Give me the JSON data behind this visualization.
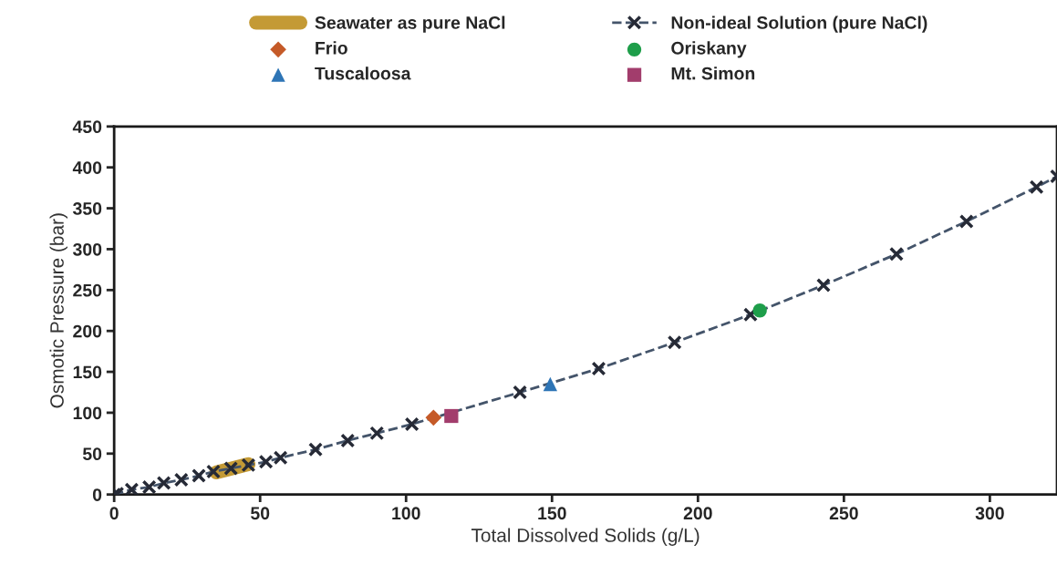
{
  "chart_data": {
    "type": "line",
    "xlabel": "Total Dissolved Solids (g/L)",
    "ylabel": "Osmotic Pressure (bar)",
    "xlim": [
      0,
      323
    ],
    "ylim": [
      0,
      450
    ],
    "xticks": [
      0,
      50,
      100,
      150,
      200,
      250,
      300
    ],
    "yticks": [
      0,
      50,
      100,
      150,
      200,
      250,
      300,
      350,
      400,
      450
    ],
    "grid": false,
    "legend": "top",
    "series": [
      {
        "name": "Seawater as pure NaCl",
        "color": "#c49a35",
        "marker": "none",
        "line_style": "solid",
        "x": [
          35,
          46
        ],
        "values": [
          27,
          37
        ]
      },
      {
        "name": "Non-ideal Solution (pure NaCl)",
        "color": "#44546a",
        "marker": "cross",
        "line_style": "dashed",
        "x": [
          0,
          1,
          6,
          12,
          17,
          23,
          29,
          34,
          40,
          46,
          52,
          57,
          69,
          80,
          90,
          102,
          139,
          166,
          192,
          218,
          243,
          268,
          292,
          316,
          323
        ],
        "values": [
          0,
          1,
          6,
          9,
          14,
          18,
          23,
          28,
          32,
          36,
          40,
          45,
          55,
          66,
          75,
          86,
          125,
          154,
          186,
          220,
          256,
          294,
          334,
          376,
          389
        ]
      },
      {
        "name": "Frio",
        "type": "scatter",
        "color": "#c55a28",
        "marker": "diamond",
        "x": [
          109.4
        ],
        "values": [
          94
        ]
      },
      {
        "name": "Oriskany",
        "type": "scatter",
        "color": "#1e9e4a",
        "marker": "circle",
        "x": [
          221.2
        ],
        "values": [
          225
        ]
      },
      {
        "name": "Tuscaloosa",
        "type": "scatter",
        "color": "#2e75b6",
        "marker": "triangle",
        "x": [
          149.4
        ],
        "values": [
          135
        ]
      },
      {
        "name": "Mt. Simon",
        "type": "scatter",
        "color": "#a23d6c",
        "marker": "square",
        "x": [
          115.5
        ],
        "values": [
          96
        ]
      }
    ]
  }
}
